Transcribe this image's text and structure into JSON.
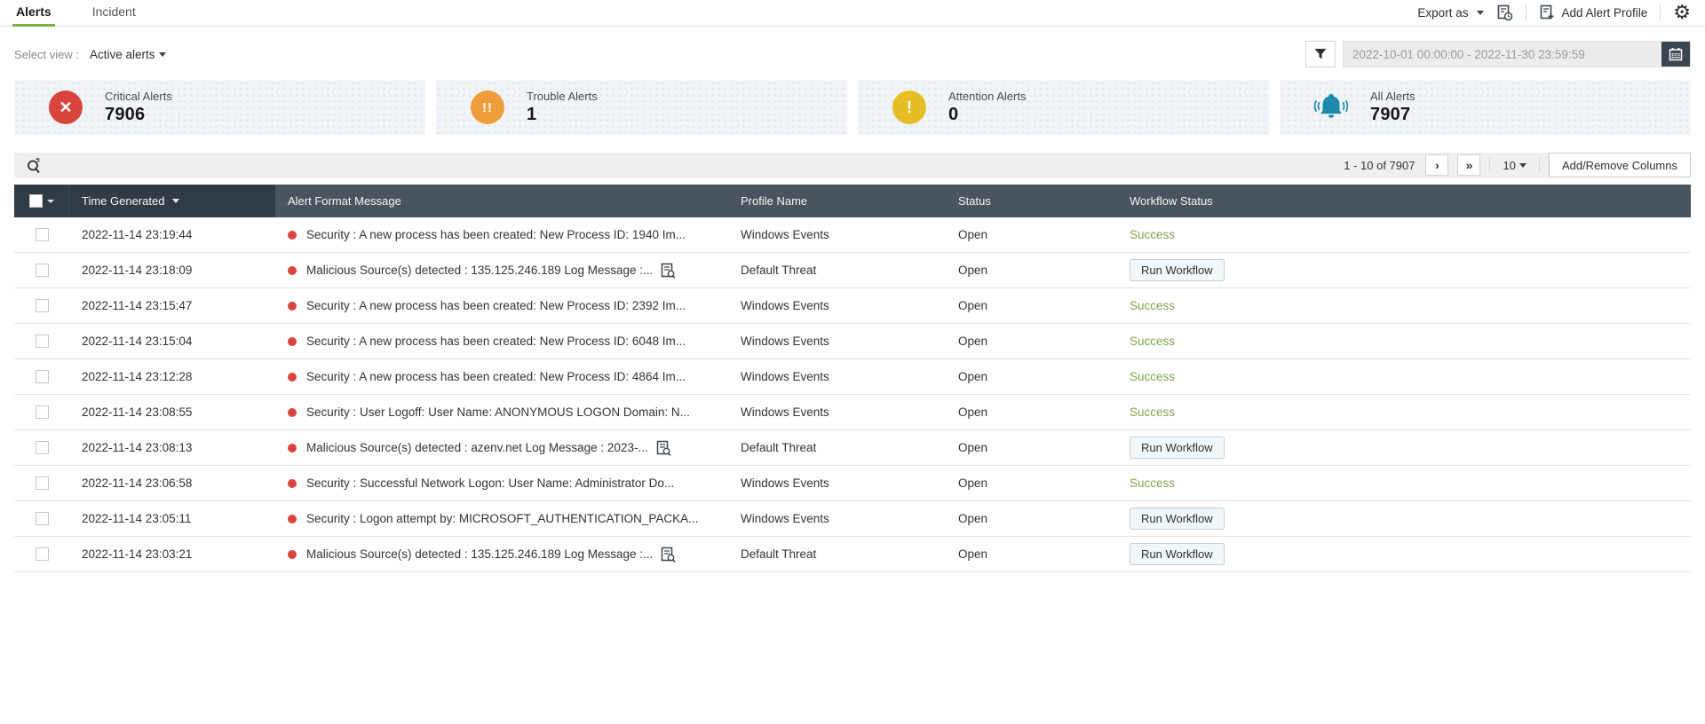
{
  "tabs": [
    {
      "label": "Alerts",
      "active": true
    },
    {
      "label": "Incident",
      "active": false
    }
  ],
  "top_actions": {
    "export_label": "Export as",
    "schedule_icon": "report-clock-icon",
    "add_alert_profile_label": "Add Alert Profile",
    "settings_icon": "gear-icon"
  },
  "view_selector": {
    "label": "Select view :",
    "value": "Active alerts"
  },
  "filter": {
    "funnel_icon": "funnel-icon",
    "date_range": "2022-10-01 00:00:00 - 2022-11-30 23:59:59",
    "calendar_icon": "calendar-icon"
  },
  "summary_cards": [
    {
      "label": "Critical Alerts",
      "value": "7906",
      "icon": "critical-cross-icon",
      "icon_color": "#d9453d",
      "glyph": "✕"
    },
    {
      "label": "Trouble Alerts",
      "value": "1",
      "icon": "double-exclamation-icon",
      "icon_color": "#f09d3c",
      "glyph": "!!"
    },
    {
      "label": "Attention Alerts",
      "value": "0",
      "icon": "exclamation-icon",
      "icon_color": "#e4be24",
      "glyph": "!"
    },
    {
      "label": "All Alerts",
      "value": "7907",
      "icon": "bell-icon",
      "icon_color": "#1d89ab",
      "glyph": "bell"
    }
  ],
  "toolbar": {
    "search_icon": "search-logs-icon",
    "pagination_text": "1 - 10 of 7907",
    "next_icon": "chevron-right-icon",
    "last_icon": "double-chevron-right-icon",
    "page_size": "10",
    "columns_button_label": "Add/Remove Columns"
  },
  "table": {
    "columns": {
      "time": "Time Generated",
      "message": "Alert Format Message",
      "profile": "Profile Name",
      "status": "Status",
      "workflow": "Workflow Status"
    },
    "rows": [
      {
        "time": "2022-11-14 23:19:44",
        "message": "Security : A new process has been created: New Process ID: 1940 Im...",
        "log_icon": false,
        "profile": "Windows Events",
        "status": "Open",
        "workflow": "Success",
        "workflow_type": "success"
      },
      {
        "time": "2022-11-14 23:18:09",
        "message": "Malicious Source(s) detected : 135.125.246.189 Log Message :...",
        "log_icon": true,
        "profile": "Default Threat",
        "status": "Open",
        "workflow": "Run Workflow",
        "workflow_type": "button"
      },
      {
        "time": "2022-11-14 23:15:47",
        "message": "Security : A new process has been created: New Process ID: 2392 Im...",
        "log_icon": false,
        "profile": "Windows Events",
        "status": "Open",
        "workflow": "Success",
        "workflow_type": "success"
      },
      {
        "time": "2022-11-14 23:15:04",
        "message": "Security : A new process has been created: New Process ID: 6048 Im...",
        "log_icon": false,
        "profile": "Windows Events",
        "status": "Open",
        "workflow": "Success",
        "workflow_type": "success"
      },
      {
        "time": "2022-11-14 23:12:28",
        "message": "Security : A new process has been created: New Process ID: 4864 Im...",
        "log_icon": false,
        "profile": "Windows Events",
        "status": "Open",
        "workflow": "Success",
        "workflow_type": "success"
      },
      {
        "time": "2022-11-14 23:08:55",
        "message": "Security : User Logoff: User Name: ANONYMOUS LOGON Domain: N...",
        "log_icon": false,
        "profile": "Windows Events",
        "status": "Open",
        "workflow": "Success",
        "workflow_type": "success"
      },
      {
        "time": "2022-11-14 23:08:13",
        "message": "Malicious Source(s) detected : azenv.net Log Message : 2023-...",
        "log_icon": true,
        "profile": "Default Threat",
        "status": "Open",
        "workflow": "Run Workflow",
        "workflow_type": "button"
      },
      {
        "time": "2022-11-14 23:06:58",
        "message": "Security : Successful Network Logon: User Name: Administrator Do...",
        "log_icon": false,
        "profile": "Windows Events",
        "status": "Open",
        "workflow": "Success",
        "workflow_type": "success"
      },
      {
        "time": "2022-11-14 23:05:11",
        "message": "Security : Logon attempt by: MICROSOFT_AUTHENTICATION_PACKA...",
        "log_icon": false,
        "profile": "Windows Events",
        "status": "Open",
        "workflow": "Run Workflow",
        "workflow_type": "button"
      },
      {
        "time": "2022-11-14 23:03:21",
        "message": "Malicious Source(s) detected : 135.125.246.189 Log Message :...",
        "log_icon": true,
        "profile": "Default Threat",
        "status": "Open",
        "workflow": "Run Workflow",
        "workflow_type": "button"
      }
    ]
  },
  "colors": {
    "accent_green": "#76b043",
    "success_text": "#7ea64d",
    "critical_red": "#d9453d",
    "trouble_orange": "#f09d3c",
    "attention_yellow": "#e4be24",
    "all_teal": "#1d89ab",
    "header_dark": "#313b45",
    "header_base": "#4a545e"
  }
}
